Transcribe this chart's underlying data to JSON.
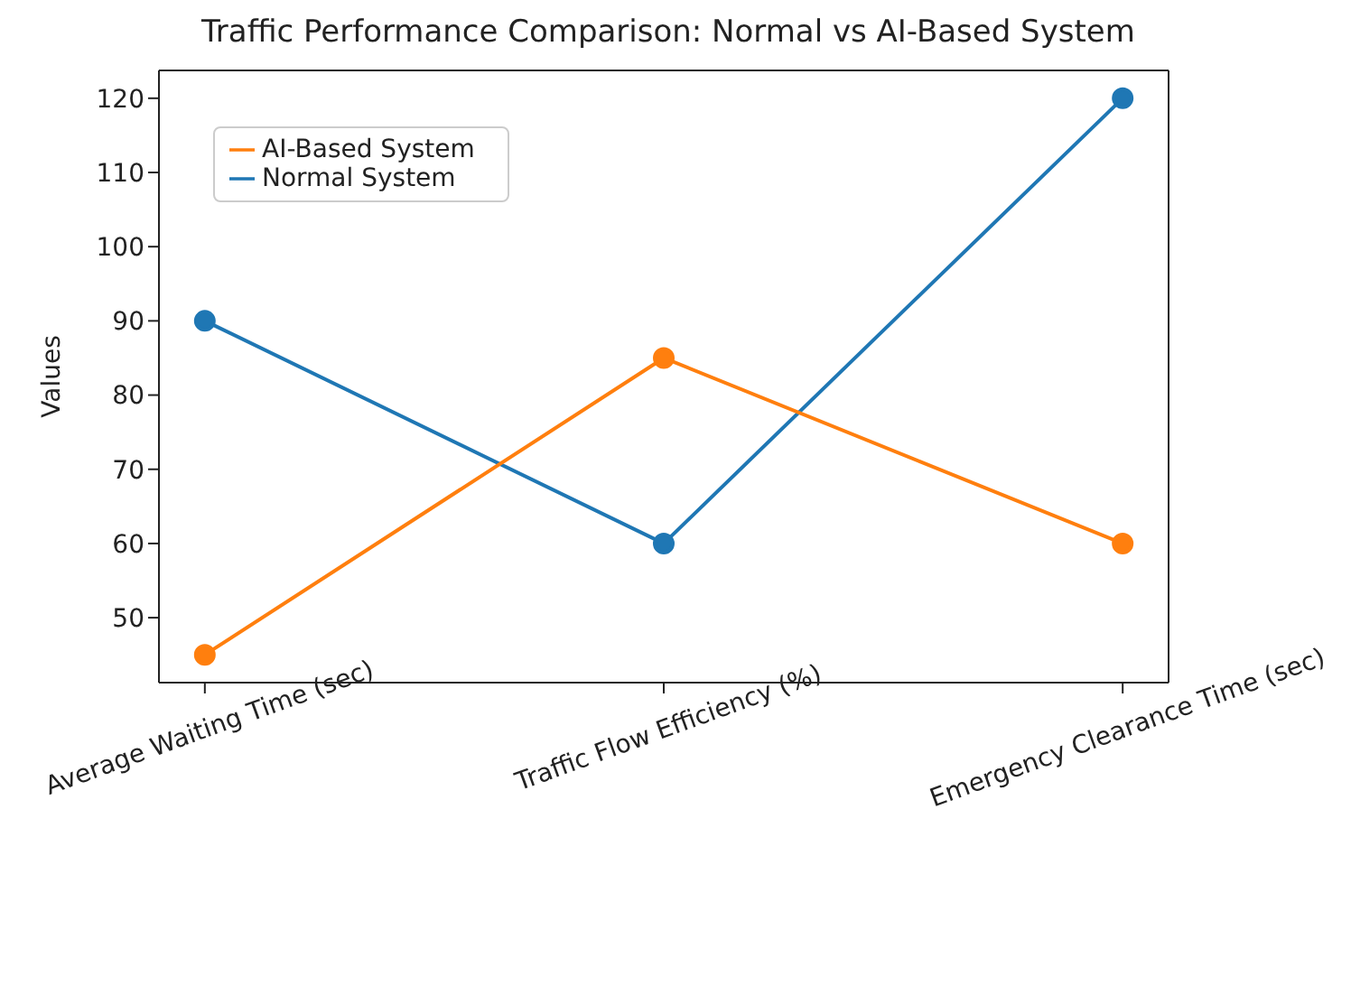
{
  "chart_data": {
    "type": "line",
    "title": "Traffic Performance Comparison: Normal vs AI-Based System",
    "ylabel": "Values",
    "categories": [
      "Average Waiting Time (sec)",
      "Traffic Flow Efficiency (%)",
      "Emergency Clearance Time (sec)"
    ],
    "series": [
      {
        "name": "Normal System",
        "color": "#1f77b4",
        "values": [
          90,
          60,
          120
        ]
      },
      {
        "name": "AI-Based System",
        "color": "#ff7f0e",
        "values": [
          45,
          85,
          60
        ]
      }
    ],
    "ylim": [
      41.25,
      123.75
    ],
    "yticks": [
      50,
      60,
      70,
      80,
      90,
      100,
      110,
      120
    ],
    "grid": false,
    "legend": "top left",
    "marker": "circle",
    "line_style": "solid"
  }
}
